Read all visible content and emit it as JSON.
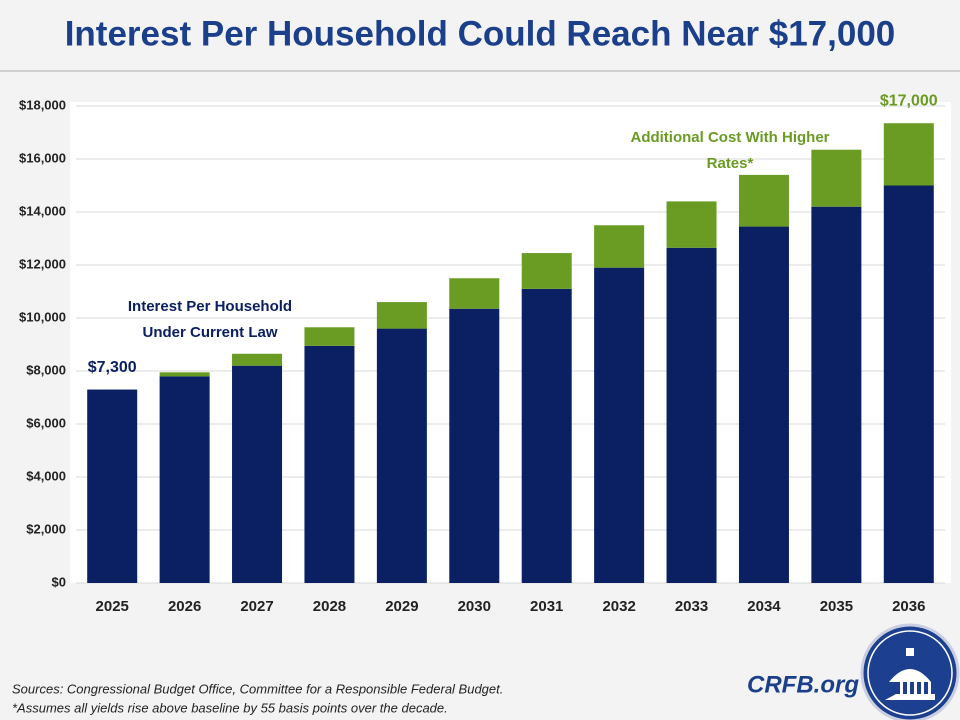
{
  "chart_data": {
    "type": "stacked_bar",
    "title": "Interest Per Household Could Reach Near $17,000",
    "categories": [
      "2025",
      "2026",
      "2027",
      "2028",
      "2029",
      "2030",
      "2031",
      "2032",
      "2033",
      "2034",
      "2035",
      "2036"
    ],
    "series": [
      {
        "name": "Interest Per Household Under Current Law",
        "color": "#0b2062",
        "values": [
          7300,
          7800,
          8200,
          8950,
          9600,
          10350,
          11100,
          11900,
          12650,
          13450,
          14200,
          15000
        ]
      },
      {
        "name": "Additional Cost With Higher Rates*",
        "color": "#6a9b23",
        "values": [
          0,
          150,
          450,
          700,
          1000,
          1150,
          1350,
          1600,
          1750,
          1950,
          2150,
          2350
        ]
      }
    ],
    "annotations": [
      "$7,300",
      "$17,000"
    ],
    "ylim": [
      0,
      18000
    ],
    "yticks": [
      {
        "value": 0,
        "label": "$0"
      },
      {
        "value": 2000,
        "label": "$2,000"
      },
      {
        "value": 4000,
        "label": "$4,000"
      },
      {
        "value": 6000,
        "label": "$6,000"
      },
      {
        "value": 8000,
        "label": "$8,000"
      },
      {
        "value": 10000,
        "label": "$10,000"
      },
      {
        "value": 12000,
        "label": "$12,000"
      },
      {
        "value": 14000,
        "label": "$14,000"
      },
      {
        "value": 16000,
        "label": "$16,000"
      },
      {
        "value": 18000,
        "label": "$18,000"
      }
    ],
    "grid": true,
    "sources": "Sources: Congressional Budget Office, Committee for a Responsible Federal Budget.",
    "footnote": "*Assumes all yields rise above baseline by 55 basis points over the decade.",
    "brand": "CRFB.org"
  }
}
